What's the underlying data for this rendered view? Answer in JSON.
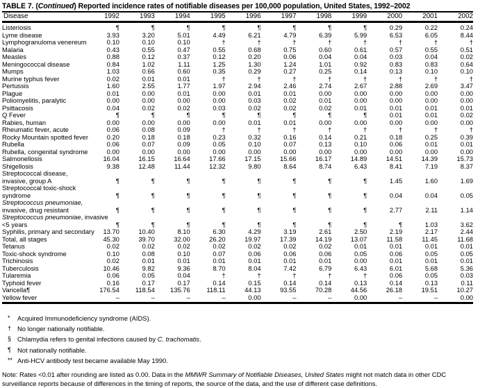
{
  "colors": {
    "text": "#000000",
    "background": "#ffffff",
    "rule": "#000000"
  },
  "title": {
    "prefix": "TABLE 7. (",
    "continued": "Continued",
    "rest": ") Reported incidence rates of notifiable diseases per 100,000 population, United States, 1992–2002"
  },
  "table": {
    "disease_header": "Disease",
    "year_columns": [
      "1992",
      "1993",
      "1994",
      "1995",
      "1996",
      "1997",
      "1998",
      "1999",
      "2000",
      "2001",
      "2002"
    ],
    "rows": [
      {
        "label": "Listeriosis",
        "values": [
          "¶",
          "¶",
          "¶",
          "¶",
          "¶",
          "¶",
          "¶",
          "¶",
          "0.29",
          "0.22",
          "0.24"
        ]
      },
      {
        "label": "Lyme disease",
        "values": [
          "3.93",
          "3.20",
          "5.01",
          "4.49",
          "6.21",
          "4.79",
          "6.39",
          "5.99",
          "6.53",
          "6.05",
          "8.44"
        ]
      },
      {
        "label": "Lymphogranuloma venereum",
        "values": [
          "0.10",
          "0.10",
          "0.10",
          "†",
          "†",
          "†",
          "†",
          "†",
          "†",
          "†",
          "†"
        ]
      },
      {
        "label": "Malaria",
        "values": [
          "0.43",
          "0.55",
          "0.47",
          "0.55",
          "0.68",
          "0.75",
          "0.60",
          "0.61",
          "0.57",
          "0.55",
          "0.51"
        ]
      },
      {
        "label": "Measles",
        "values": [
          "0.88",
          "0.12",
          "0.37",
          "0.12",
          "0.20",
          "0.06",
          "0.04",
          "0.04",
          "0.03",
          "0.04",
          "0.02"
        ]
      },
      {
        "label": "Meningococcal disease",
        "values": [
          "0.84",
          "1.02",
          "1.11",
          "1.25",
          "1.30",
          "1.24",
          "1.01",
          "0.92",
          "0.83",
          "0.83",
          "0.64"
        ]
      },
      {
        "label": "Mumps",
        "values": [
          "1.03",
          "0.66",
          "0.60",
          "0.35",
          "0.29",
          "0.27",
          "0.25",
          "0.14",
          "0.13",
          "0.10",
          "0.10"
        ]
      },
      {
        "label": "Murine typhus fever",
        "values": [
          "0.02",
          "0.01",
          "0.01",
          "†",
          "†",
          "†",
          "†",
          "†",
          "†",
          "†",
          "†"
        ]
      },
      {
        "label": "Pertussis",
        "values": [
          "1.60",
          "2.55",
          "1.77",
          "1.97",
          "2.94",
          "2.46",
          "2.74",
          "2.67",
          "2.88",
          "2.69",
          "3.47"
        ]
      },
      {
        "label": "Plague",
        "values": [
          "0.01",
          "0.00",
          "0.01",
          "0.00",
          "0.01",
          "0.01",
          "0.00",
          "0.00",
          "0.00",
          "0.00",
          "0.00"
        ]
      },
      {
        "label": "Poliomyelitis, paralytic",
        "values": [
          "0.00",
          "0.00",
          "0.00",
          "0.00",
          "0.03",
          "0.02",
          "0.01",
          "0.00",
          "0.00",
          "0.00",
          "0.00"
        ]
      },
      {
        "label": "Psittacosis",
        "values": [
          "0.04",
          "0.02",
          "0.02",
          "0.03",
          "0.02",
          "0.02",
          "0.02",
          "0.01",
          "0.01",
          "0.01",
          "0.01"
        ]
      },
      {
        "label": "Q Fever",
        "values": [
          "¶",
          "¶",
          "¶",
          "¶",
          "¶",
          "¶",
          "¶",
          "¶",
          "0.01",
          "0.01",
          "0.02"
        ]
      },
      {
        "label": "Rabies, human",
        "values": [
          "0.00",
          "0.00",
          "0.00",
          "0.00",
          "0.01",
          "0.01",
          "0.00",
          "0.00",
          "0.00",
          "0.00",
          "0.00"
        ]
      },
      {
        "label": "Rheumatic fever, acute",
        "values": [
          "0.06",
          "0.08",
          "0.09",
          "†",
          "†",
          "†",
          "†",
          "†",
          "†",
          "†",
          "†"
        ]
      },
      {
        "label": "Rocky Mountain spotted fever",
        "values": [
          "0.20",
          "0.18",
          "0.18",
          "0.23",
          "0.32",
          "0.16",
          "0.14",
          "0.21",
          "0.18",
          "0.25",
          "0.39"
        ]
      },
      {
        "label": "Rubella",
        "values": [
          "0.06",
          "0.07",
          "0.09",
          "0.05",
          "0.10",
          "0.07",
          "0.13",
          "0.10",
          "0.06",
          "0.01",
          "0.01"
        ]
      },
      {
        "label": "Rubella, congenital syndrome",
        "values": [
          "0.00",
          "0.00",
          "0.00",
          "0.00",
          "0.00",
          "0.00",
          "0.00",
          "0.00",
          "0.00",
          "0.00",
          "0.00"
        ]
      },
      {
        "label": "Salmonellosis",
        "values": [
          "16.04",
          "16.15",
          "16.64",
          "17.66",
          "17.15",
          "15.66",
          "16.17",
          "14.89",
          "14.51",
          "14.39",
          "15.73"
        ]
      },
      {
        "label": "Shigellosis",
        "values": [
          "9.38",
          "12.48",
          "11.44",
          "12.32",
          "9.80",
          "8.64",
          "8.74",
          "6.43",
          "8.41",
          "7.19",
          "8.37"
        ]
      },
      {
        "type": "group",
        "label": "Streptococcal disease,"
      },
      {
        "label": "invasive, group A",
        "indent": 1,
        "values": [
          "¶",
          "¶",
          "¶",
          "¶",
          "¶",
          "¶",
          "¶",
          "¶",
          "1.45",
          "1.60",
          "1.69"
        ]
      },
      {
        "type": "group",
        "label": "Streptococcal toxic-shock"
      },
      {
        "label": "syndrome",
        "indent": 1,
        "values": [
          "¶",
          "¶",
          "¶",
          "¶",
          "¶",
          "¶",
          "¶",
          "¶",
          "0.04",
          "0.04",
          "0.05"
        ]
      },
      {
        "type": "group",
        "label_italic": "Streptococcus pneumoniae,"
      },
      {
        "label": "invasive, drug resistant",
        "indent": 1,
        "values": [
          "¶",
          "¶",
          "¶",
          "¶",
          "¶",
          "¶",
          "¶",
          "¶",
          "2.77",
          "2.11",
          "1.14"
        ]
      },
      {
        "type": "group",
        "label_italic": "Streptococcus pneumoniae",
        "label": ", invasive"
      },
      {
        "label": "<5 years",
        "indent": 1,
        "values": [
          "¶",
          "¶",
          "¶",
          "¶",
          "¶",
          "¶",
          "¶",
          "¶",
          "¶",
          "1.03",
          "3.62"
        ]
      },
      {
        "label": "Syphilis, primary and secondary",
        "values": [
          "13.70",
          "10.40",
          "8.10",
          "6.30",
          "4.29",
          "3.19",
          "2.61",
          "2.50",
          "2.19",
          "2.17",
          "2.44"
        ]
      },
      {
        "label": "Total, all stages",
        "indent": 2,
        "values": [
          "45.30",
          "39.70",
          "32.00",
          "26.20",
          "19.97",
          "17.39",
          "14.19",
          "13.07",
          "11.58",
          "11.45",
          "11.68"
        ]
      },
      {
        "label": "Tetanus",
        "values": [
          "0.02",
          "0.02",
          "0.02",
          "0.02",
          "0.02",
          "0.02",
          "0.02",
          "0.01",
          "0.01",
          "0.01",
          "0.01"
        ]
      },
      {
        "label": "Toxic-shock syndrome",
        "values": [
          "0.10",
          "0.08",
          "0.10",
          "0.07",
          "0.06",
          "0.06",
          "0.06",
          "0.05",
          "0.06",
          "0.05",
          "0.05"
        ]
      },
      {
        "label": "Trichinosis",
        "values": [
          "0.02",
          "0.01",
          "0.01",
          "0.01",
          "0.01",
          "0.01",
          "0.01",
          "0.00",
          "0.01",
          "0.01",
          "0.01"
        ]
      },
      {
        "label": "Tuberculosis",
        "values": [
          "10.46",
          "9.82",
          "9.36",
          "8.70",
          "8.04",
          "7.42",
          "6.79",
          "6.43",
          "6.01",
          "5.68",
          "5.36"
        ]
      },
      {
        "label": "Tularemia",
        "values": [
          "0.06",
          "0.05",
          "0.04",
          "†",
          "†",
          "†",
          "†",
          "†",
          "0.06",
          "0.05",
          "0.03"
        ]
      },
      {
        "label": "Typhoid fever",
        "values": [
          "0.16",
          "0.17",
          "0.17",
          "0.14",
          "0.15",
          "0.14",
          "0.14",
          "0.13",
          "0.14",
          "0.13",
          "0.11"
        ]
      },
      {
        "label": "Varicella¶",
        "values": [
          "176.54",
          "118.54",
          "135.76",
          "118.11",
          "44.13",
          "93.55",
          "70.28",
          "44.56",
          "26.18",
          "19.51",
          "10.27"
        ]
      },
      {
        "label": "Yellow fever",
        "values": [
          "–",
          "–",
          "–",
          "–",
          "0.00",
          "–",
          "–",
          "0.00",
          "–",
          "–",
          "0.00"
        ]
      }
    ]
  },
  "footnotes": [
    {
      "marker": "*",
      "parts": [
        {
          "t": "Acquired Immunodeficiency syndrome (AIDS)."
        }
      ]
    },
    {
      "marker": "†",
      "parts": [
        {
          "t": "No longer nationally notifiable."
        }
      ]
    },
    {
      "marker": "§",
      "parts": [
        {
          "t": "Chlamydia refers to genital infections caused by "
        },
        {
          "t": "C. trachomatis",
          "i": true
        },
        {
          "t": "."
        }
      ]
    },
    {
      "marker": "¶",
      "parts": [
        {
          "t": "Not nationally notifiable."
        }
      ]
    },
    {
      "marker": "**",
      "parts": [
        {
          "t": "Anti-HCV antibody test became available May 1990."
        }
      ]
    }
  ],
  "note": {
    "parts": [
      {
        "t": "Note: Rates <0.01 after rounding are listed as 0.00.  Data in the "
      },
      {
        "t": "MMWR Summary of Notifiable Diseases, United States",
        "i": true
      },
      {
        "t": " might not match data in other CDC surveillance reports because of differences in the timing of reports, the source of the data, and the use of different case definitions."
      }
    ]
  }
}
